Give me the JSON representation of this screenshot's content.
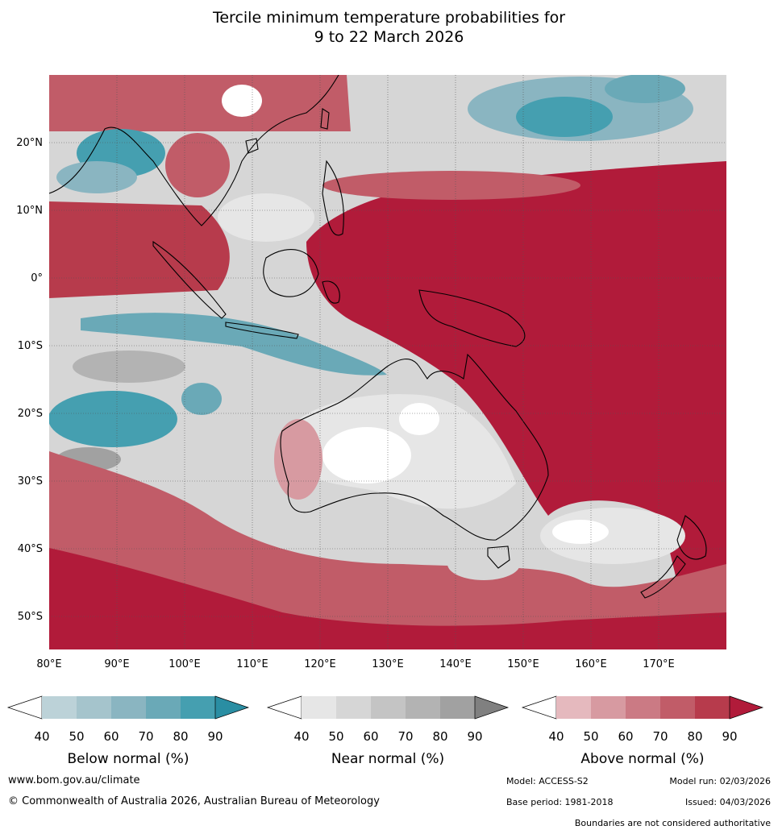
{
  "title_line1": "Tercile minimum temperature probabilities for",
  "title_line2": "9 to 22 March 2026",
  "map": {
    "lon_range": [
      80,
      180
    ],
    "lat_range": [
      -55,
      30
    ],
    "lon_ticks": [
      "80°E",
      "90°E",
      "100°E",
      "110°E",
      "120°E",
      "130°E",
      "140°E",
      "150°E",
      "160°E",
      "170°E"
    ],
    "lat_ticks": [
      "20°N",
      "10°N",
      "0°",
      "10°S",
      "20°S",
      "30°S",
      "40°S",
      "50°S"
    ]
  },
  "colorbars": [
    {
      "label": "Below normal (%)",
      "ticks": [
        "40",
        "50",
        "60",
        "70",
        "80",
        "90"
      ],
      "colors": [
        "#ffffff",
        "#bcd2d8",
        "#a5c4cc",
        "#8ab5c1",
        "#6aa9b7",
        "#459fb0",
        "#2a8ea3"
      ]
    },
    {
      "label": "Near normal (%)",
      "ticks": [
        "40",
        "50",
        "60",
        "70",
        "80",
        "90"
      ],
      "colors": [
        "#ffffff",
        "#e6e6e6",
        "#d6d6d6",
        "#c4c4c4",
        "#b3b3b3",
        "#a1a1a1",
        "#808080"
      ]
    },
    {
      "label": "Above normal (%)",
      "ticks": [
        "40",
        "50",
        "60",
        "70",
        "80",
        "90"
      ],
      "colors": [
        "#ffffff",
        "#e5b9be",
        "#d79aa1",
        "#cb7a84",
        "#c15c68",
        "#b73b4c",
        "#b11b3a"
      ]
    }
  ],
  "footer": {
    "website": "www.bom.gov.au/climate",
    "copyright": "© Commonwealth of Australia 2026, Australian Bureau of Meteorology",
    "model": "Model: ACCESS-S2",
    "model_run": "Model run: 02/03/2026",
    "base_period": "Base period: 1981-2018",
    "issued": "Issued: 04/03/2026",
    "disclaimer": "Boundaries are not considered authoritative"
  }
}
